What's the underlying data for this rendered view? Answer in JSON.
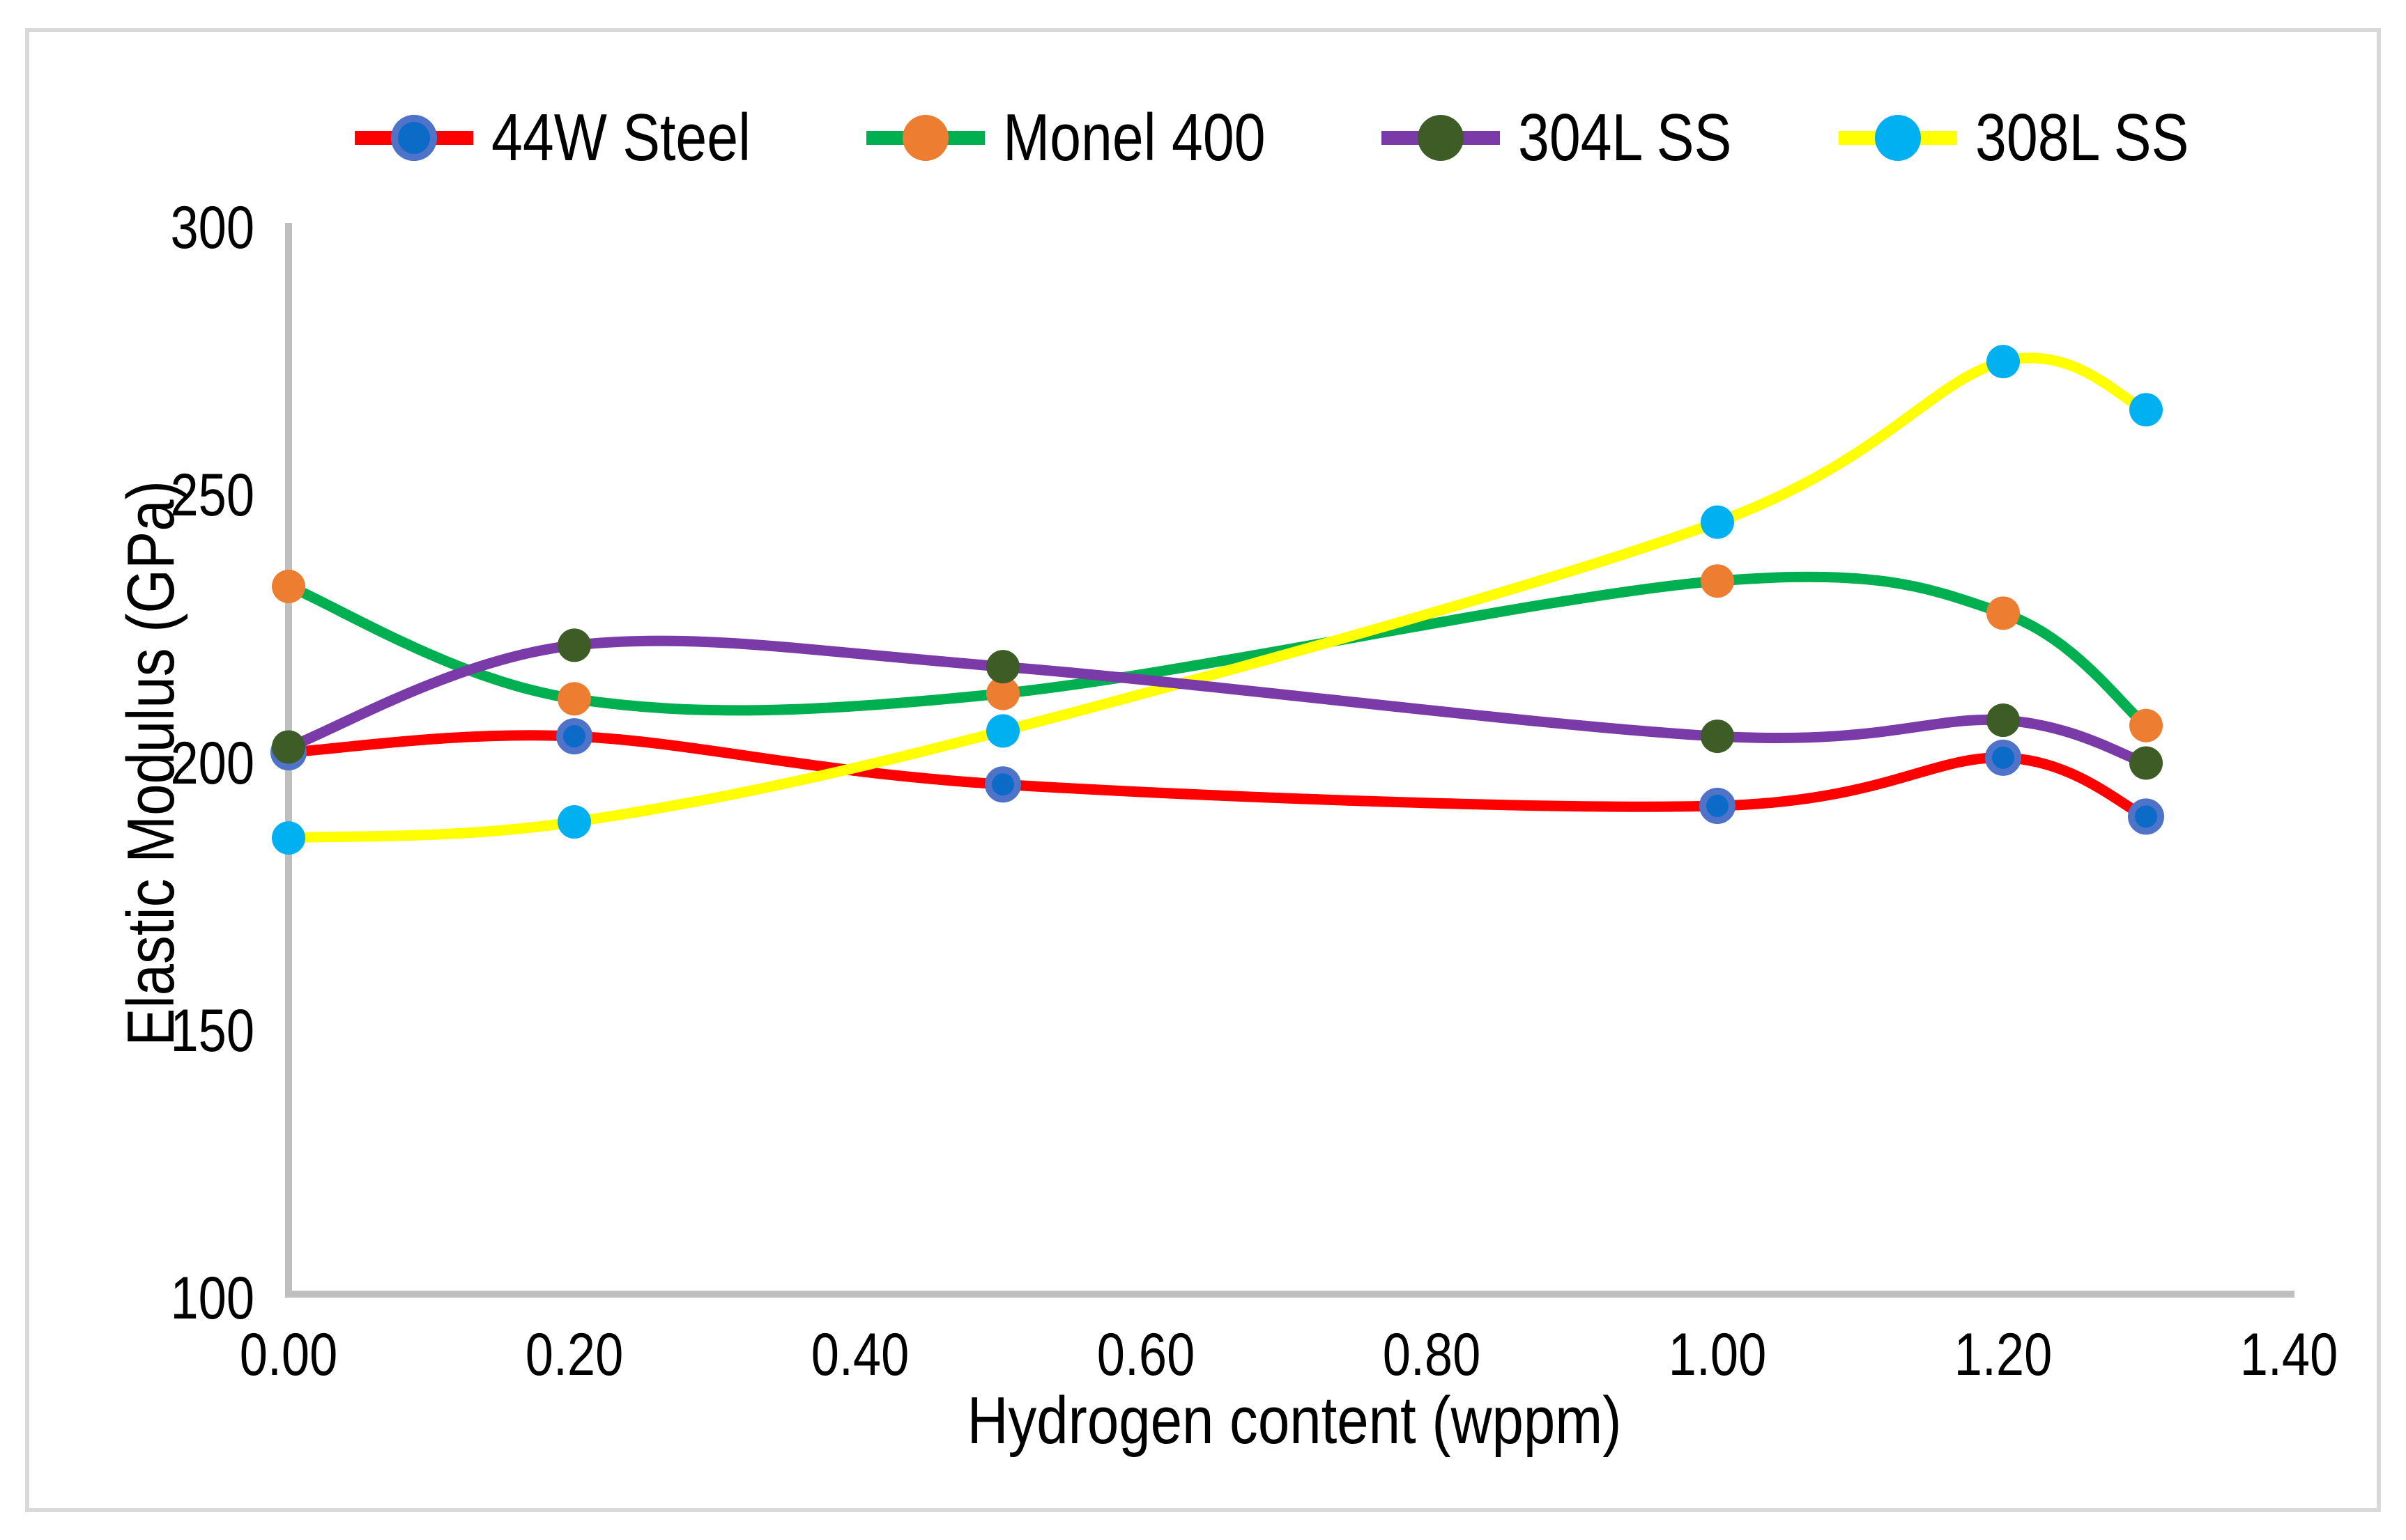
{
  "figure": {
    "background": "#FFFFFF",
    "border_color": "#D9D9D9",
    "axis_color": "#BFBFBF",
    "text_color": "#000000"
  },
  "legend": {
    "position": "top-center",
    "items": [
      "44W Steel",
      "Monel 400",
      "304L SS",
      "308L SS"
    ]
  },
  "axes": {
    "y": {
      "title": "Elastic Modulus (GPa)",
      "ticks": [
        "300",
        "250",
        "200",
        "150",
        "100"
      ],
      "min": 100,
      "max": 300
    },
    "x": {
      "title": "Hydrogen content (wppm)",
      "ticks": [
        "0.00",
        "0.20",
        "0.40",
        "0.60",
        "0.80",
        "1.00",
        "1.20",
        "1.40"
      ],
      "min": 0,
      "max": 1.4
    }
  },
  "chart_data": {
    "type": "line",
    "smooth": true,
    "grid": false,
    "legend_position": "top",
    "xlabel": "Hydrogen content (wppm)",
    "ylabel": "Elastic Modulus (GPa)",
    "xlim": [
      0,
      1.4
    ],
    "ylim": [
      100,
      300
    ],
    "x": [
      0.0,
      0.2,
      0.5,
      1.0,
      1.2,
      1.3
    ],
    "series": [
      {
        "name": "44W Steel",
        "line_color": "#FF0000",
        "marker_fill": "#0B6BC7",
        "marker_stroke": "#4E73C8",
        "values": [
          202,
          205,
          196,
          192,
          201,
          190
        ]
      },
      {
        "name": "Monel 400",
        "line_color": "#00B050",
        "marker_fill": "#ED7D31",
        "marker_stroke": null,
        "values": [
          233,
          212,
          213,
          234,
          228,
          207
        ]
      },
      {
        "name": "304L SS",
        "line_color": "#7A3BA8",
        "marker_fill": "#3E5C26",
        "marker_stroke": null,
        "values": [
          203,
          222,
          218,
          205,
          208,
          200
        ]
      },
      {
        "name": "308L SS",
        "line_color": "#FFFF00",
        "marker_fill": "#00B0F0",
        "marker_stroke": null,
        "values": [
          186,
          189,
          206,
          245,
          275,
          266
        ]
      }
    ]
  }
}
